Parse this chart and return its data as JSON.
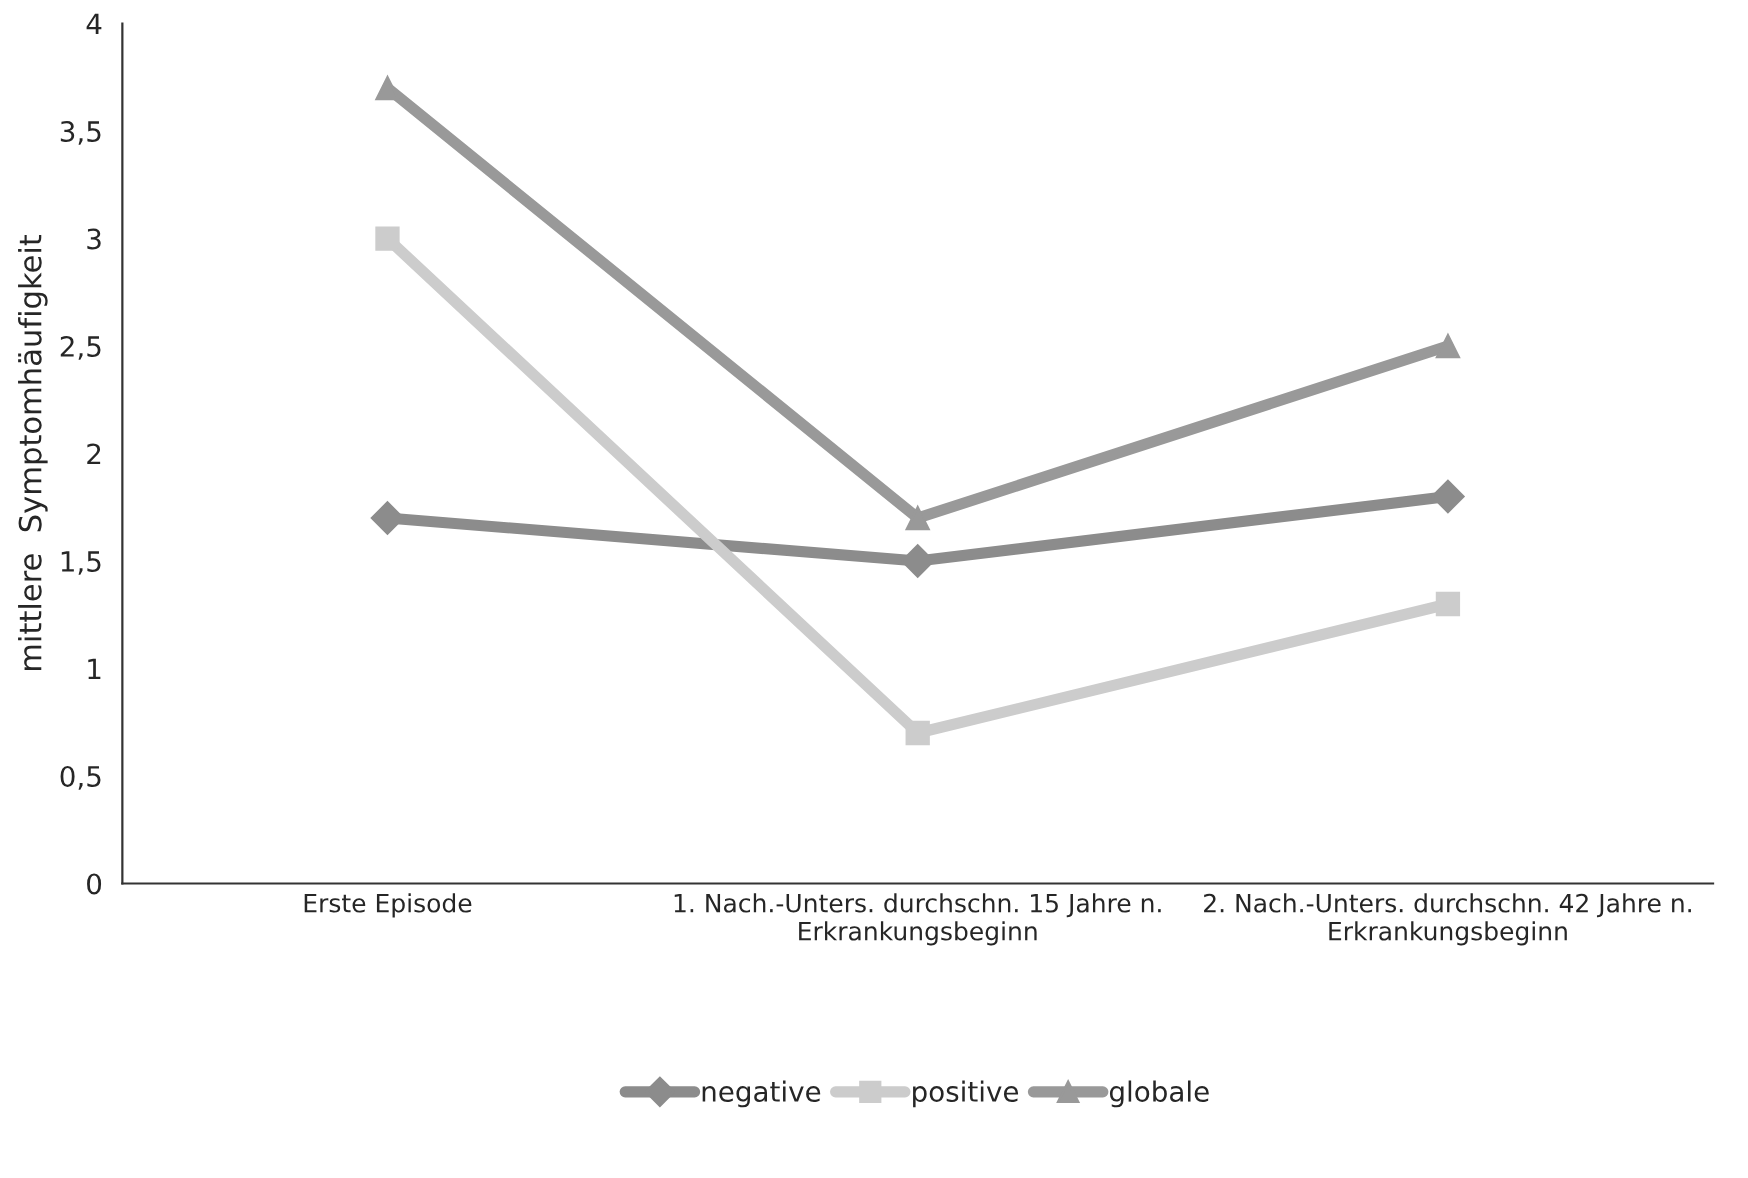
{
  "chart_data": {
    "type": "line",
    "ylabel": "mittlere  Symptomhäufigkeit",
    "categories": [
      "Erste Episode",
      "1. Nach.-Unters. durchschn. 15 Jahre n.\nErkrankungsbeginn",
      "2. Nach.-Unters. durchschn. 42 Jahre n.\nErkrankungsbeginn"
    ],
    "series": [
      {
        "name": "negative",
        "color": "#8c8c8c",
        "marker": "diamond",
        "values": [
          1.7,
          1.5,
          1.8
        ]
      },
      {
        "name": "positive",
        "color": "#cccccc",
        "marker": "square",
        "values": [
          3.0,
          0.7,
          1.3
        ]
      },
      {
        "name": "globale",
        "color": "#999999",
        "marker": "triangle",
        "values": [
          3.7,
          1.7,
          2.5
        ]
      }
    ],
    "ylim": [
      0,
      4
    ],
    "yticks": [
      0,
      {
        "value": 0.5,
        "label": "0,5"
      },
      1,
      {
        "value": 1.5,
        "label": "1,5"
      },
      2,
      {
        "value": 2.5,
        "label": "2,5"
      },
      3,
      {
        "value": 3.5,
        "label": "3,5"
      },
      4
    ],
    "grid": false,
    "legend": "bottom",
    "line_style": "solid"
  }
}
